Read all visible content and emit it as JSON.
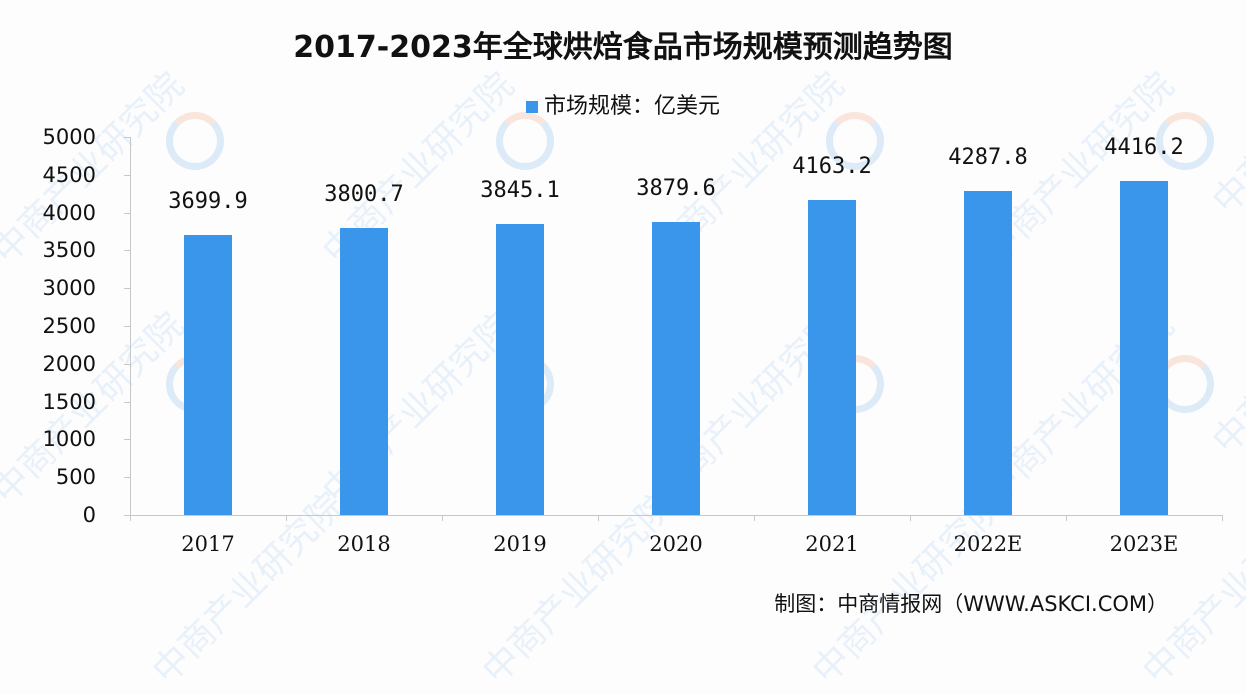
{
  "chart_data": {
    "type": "bar",
    "title": "2017-2023年全球烘焙食品市场规模预测趋势图",
    "categories": [
      "2017",
      "2018",
      "2019",
      "2020",
      "2021",
      "2022E",
      "2023E"
    ],
    "series": [
      {
        "name": "市场规模：亿美元",
        "values": [
          3699.9,
          3800.7,
          3845.1,
          3879.6,
          4163.2,
          4287.8,
          4416.2
        ],
        "color": "#3a96ea"
      }
    ],
    "value_labels": [
      "3699.9",
      "3800.7",
      "3845.1",
      "3879.6",
      "4163.2",
      "4287.8",
      "4416.2"
    ],
    "xlabel": "",
    "ylabel": "",
    "ylim": [
      0,
      5000
    ],
    "yticks": [
      "0",
      "500",
      "1000",
      "1500",
      "2000",
      "2500",
      "3000",
      "3500",
      "4000",
      "4500",
      "5000"
    ],
    "grid": false,
    "legend_position": "top"
  },
  "title": "2017-2023年全球烘焙食品市场规模预测趋势图",
  "legend": {
    "label": "市场规模：亿美元",
    "color": "#3a96ea"
  },
  "source": "制图：中商情报网（WWW.ASKCI.COM）",
  "watermark": {
    "text": "中商产业研究院",
    "icon": "askci-logo-icon"
  }
}
